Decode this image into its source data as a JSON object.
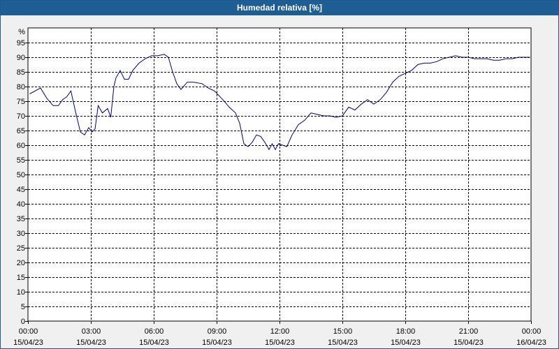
{
  "window": {
    "title": "Humedad relativa [%]"
  },
  "colors": {
    "title_bar": "#1f5d95",
    "plot_background": "#ffffff",
    "page_background": "#f0f0f0",
    "series_line": "#00008b",
    "grid": "#000000"
  },
  "chart_data": {
    "type": "line",
    "title": "Humedad relativa [%]",
    "ylabel": "%",
    "xlabel": "",
    "ylim": [
      0,
      100
    ],
    "yticks": [
      0,
      5,
      10,
      15,
      20,
      25,
      30,
      35,
      40,
      45,
      50,
      55,
      60,
      65,
      70,
      75,
      80,
      85,
      90,
      95
    ],
    "xlim": [
      0,
      24
    ],
    "grid": true,
    "x_ticks": [
      {
        "x": 0,
        "time": "00:00",
        "date": "15/04/23"
      },
      {
        "x": 3,
        "time": "03:00",
        "date": "15/04/23"
      },
      {
        "x": 6,
        "time": "06:00",
        "date": "15/04/23"
      },
      {
        "x": 9,
        "time": "09:00",
        "date": "15/04/23"
      },
      {
        "x": 12,
        "time": "12:00",
        "date": "15/04/23"
      },
      {
        "x": 15,
        "time": "15:00",
        "date": "15/04/23"
      },
      {
        "x": 18,
        "time": "18:00",
        "date": "15/04/23"
      },
      {
        "x": 21,
        "time": "21:00",
        "date": "15/04/23"
      },
      {
        "x": 24,
        "time": "00:00",
        "date": "16/04/23"
      }
    ],
    "series": [
      {
        "x": [
          0.08,
          0.6,
          0.9,
          1.2,
          1.45,
          1.65,
          1.85,
          2.05,
          2.25,
          2.5,
          2.7,
          2.9,
          3.05,
          3.2,
          3.35,
          3.55,
          3.8,
          3.95,
          4.1,
          4.2,
          4.4,
          4.6,
          4.8,
          5.0,
          5.3,
          5.6,
          5.9,
          6.2,
          6.5,
          6.7,
          6.9,
          7.1,
          7.3,
          7.6,
          7.9,
          8.3,
          8.6,
          8.9,
          9.3,
          9.6,
          9.9,
          10.1,
          10.3,
          10.5,
          10.7,
          10.9,
          11.1,
          11.3,
          11.5,
          11.65,
          11.8,
          11.95,
          12.15,
          12.35,
          12.6,
          12.9,
          13.2,
          13.5,
          13.8,
          14.1,
          14.4,
          14.7,
          15.0,
          15.3,
          15.6,
          15.9,
          16.2,
          16.5,
          16.8,
          17.1,
          17.4,
          17.7,
          18.0,
          18.3,
          18.6,
          18.9,
          19.2,
          19.5,
          19.8,
          20.1,
          20.4,
          20.7,
          21.0,
          21.3,
          21.6,
          21.9,
          22.2,
          22.5,
          22.8,
          23.1,
          23.4,
          23.7,
          23.95
        ],
        "y": [
          77.5,
          79.5,
          76,
          73.5,
          73.5,
          75.5,
          76.5,
          78.5,
          72,
          64.5,
          63.5,
          66,
          64.5,
          65.5,
          73.5,
          71,
          72.5,
          69.5,
          80,
          83,
          85.5,
          82.5,
          82.5,
          85.5,
          88,
          89.5,
          90.5,
          90.5,
          91,
          90,
          85,
          81,
          79,
          81.5,
          81.5,
          81,
          79.5,
          78.5,
          75.5,
          73,
          71,
          67.5,
          60.5,
          59.5,
          61,
          63.5,
          63,
          61,
          58.5,
          60.5,
          58.5,
          60.5,
          60,
          59.5,
          63.5,
          67,
          68.5,
          71,
          70.5,
          70,
          70,
          69.5,
          70,
          73,
          72,
          74,
          75.5,
          74,
          75.5,
          78,
          81.5,
          83.5,
          84.5,
          85.5,
          87.5,
          88,
          88,
          88.5,
          89.5,
          90,
          90.5,
          90,
          90,
          89.5,
          89.5,
          89.5,
          89,
          89,
          89.5,
          89.5,
          90,
          90,
          90
        ]
      }
    ]
  }
}
